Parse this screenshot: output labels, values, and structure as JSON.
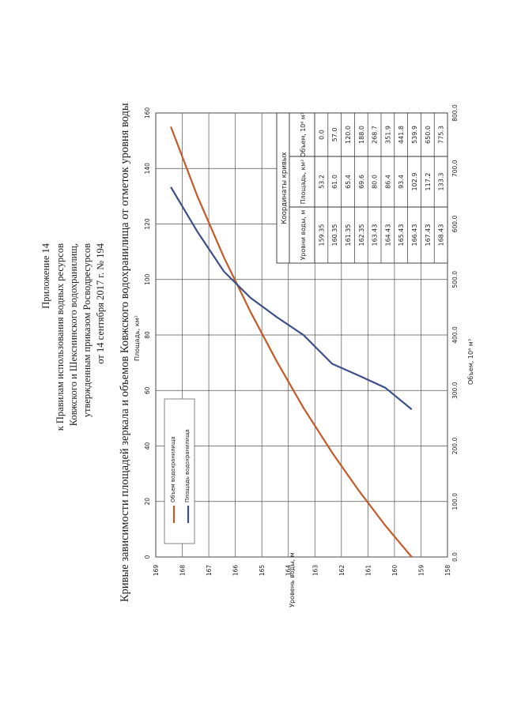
{
  "header": {
    "lines": [
      "Приложение 14",
      "к Правилам использования водных ресурсов",
      "Ковжского и Шекснинского водохранилищ,",
      "утвержденным приказом Росводресурсов",
      "от 14 сентября 2017 г. № 194"
    ]
  },
  "page_title": "Кривые зависимости площадей зеркала и объемов Ковжского водохранилища от отметок уровня воды",
  "chart_data": {
    "type": "line",
    "title": "",
    "ylabel": "Уровень воды, м",
    "xlabel_top": "Площадь, км²",
    "xlabel_bottom": "Объем, 10⁶ м³",
    "y_ticks": [
      "158",
      "159",
      "160",
      "161",
      "162",
      "163",
      "164",
      "165",
      "166",
      "167",
      "168",
      "169"
    ],
    "ylim": [
      158,
      169
    ],
    "x_top_ticks": [
      "0",
      "20",
      "40",
      "60",
      "80",
      "100",
      "120",
      "140",
      "160"
    ],
    "x_top_lim": [
      0,
      160
    ],
    "x_bottom_ticks": [
      "0.0",
      "100.0",
      "200.0",
      "300.0",
      "400.0",
      "500.0",
      "600.0",
      "700.0",
      "800.0"
    ],
    "x_bottom_lim": [
      0,
      800
    ],
    "grid": true,
    "legend_position": "bottom-left",
    "series": [
      {
        "name": "Объем водохранилища",
        "axis": "bottom",
        "color": "#c55a28",
        "levels": [
          159.35,
          160.35,
          161.35,
          162.35,
          163.43,
          164.43,
          165.43,
          166.43,
          167.43,
          168.43
        ],
        "values": [
          0.0,
          57.0,
          120.0,
          188.0,
          268.7,
          351.9,
          441.8,
          539.9,
          650.0,
          775.3
        ]
      },
      {
        "name": "Площадь водохранилища",
        "axis": "top",
        "color": "#3d4f8a",
        "levels": [
          159.35,
          160.35,
          161.35,
          162.35,
          163.43,
          164.43,
          165.43,
          166.43,
          167.43,
          168.43
        ],
        "values": [
          53.2,
          61.0,
          65.4,
          69.6,
          80.0,
          86.4,
          93.4,
          102.9,
          117.2,
          133.3
        ]
      }
    ],
    "table": {
      "title": "Координаты кривых",
      "headers": [
        "Уровни воды, м",
        "Площадь, км²",
        "Объем, 10⁶ м³"
      ],
      "rows": [
        [
          "159.35",
          "53.2",
          "0.0"
        ],
        [
          "160.35",
          "61.0",
          "57.0"
        ],
        [
          "161.35",
          "65.4",
          "120.0"
        ],
        [
          "162.35",
          "69.6",
          "188.0"
        ],
        [
          "163.43",
          "80.0",
          "268.7"
        ],
        [
          "164.43",
          "86.4",
          "351.9"
        ],
        [
          "165.43",
          "93.4",
          "441.8"
        ],
        [
          "166.43",
          "102.9",
          "539.9"
        ],
        [
          "167.43",
          "117.2",
          "650.0"
        ],
        [
          "168.43",
          "133.3",
          "775.3"
        ]
      ]
    }
  }
}
